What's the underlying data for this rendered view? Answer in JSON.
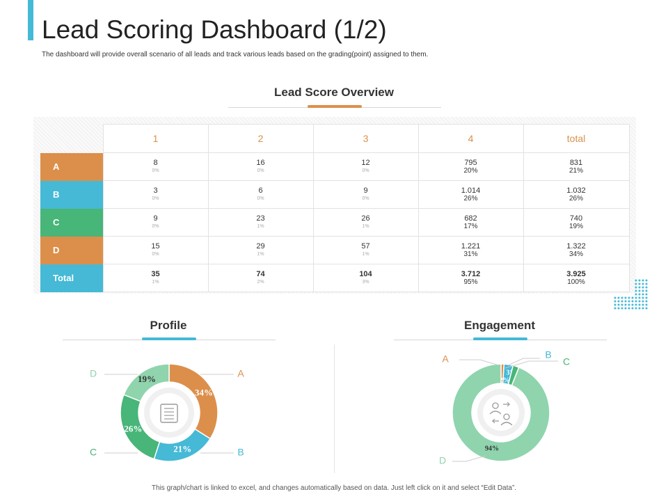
{
  "header": {
    "title": "Lead Scoring Dashboard (1/2)",
    "subtitle": "The dashboard will provide overall scenario of all leads and track various leads based on the grading(point) assigned to them."
  },
  "overview": {
    "title": "Lead Score Overview"
  },
  "colors": {
    "accent": "#45b9d6",
    "orange": "#dc8f4b",
    "blue": "#45b9d6",
    "green": "#48b579",
    "mint": "#8fd4ad",
    "header_text": "#d9904a"
  },
  "chart_data": [
    {
      "type": "table",
      "title": "Lead Score Overview",
      "columns": [
        "1",
        "2",
        "3",
        "4",
        "total"
      ],
      "rows": [
        {
          "label": "A",
          "cells": [
            {
              "v": "8",
              "p": "0%"
            },
            {
              "v": "16",
              "p": "0%"
            },
            {
              "v": "12",
              "p": "0%"
            },
            {
              "v": "795",
              "p": "20%"
            },
            {
              "v": "831",
              "p": "21%"
            }
          ]
        },
        {
          "label": "B",
          "cells": [
            {
              "v": "3",
              "p": "0%"
            },
            {
              "v": "6",
              "p": "0%"
            },
            {
              "v": "9",
              "p": "0%"
            },
            {
              "v": "1.014",
              "p": "26%"
            },
            {
              "v": "1.032",
              "p": "26%"
            }
          ]
        },
        {
          "label": "C",
          "cells": [
            {
              "v": "9",
              "p": "0%"
            },
            {
              "v": "23",
              "p": "1%"
            },
            {
              "v": "26",
              "p": "1%"
            },
            {
              "v": "682",
              "p": "17%"
            },
            {
              "v": "740",
              "p": "19%"
            }
          ]
        },
        {
          "label": "D",
          "cells": [
            {
              "v": "15",
              "p": "0%"
            },
            {
              "v": "29",
              "p": "1%"
            },
            {
              "v": "57",
              "p": "1%"
            },
            {
              "v": "1.221",
              "p": "31%"
            },
            {
              "v": "1.322",
              "p": "34%"
            }
          ]
        },
        {
          "label": "Total",
          "cells": [
            {
              "v": "35",
              "p": "1%"
            },
            {
              "v": "74",
              "p": "2%"
            },
            {
              "v": "104",
              "p": "3%"
            },
            {
              "v": "3.712",
              "p": "95%"
            },
            {
              "v": "3.925",
              "p": "100%"
            }
          ]
        }
      ]
    },
    {
      "type": "pie",
      "title": "Profile",
      "slices": [
        {
          "label": "A",
          "value": 34,
          "text": "34%",
          "color": "#dc8f4b"
        },
        {
          "label": "B",
          "value": 21,
          "text": "21%",
          "color": "#45b9d6"
        },
        {
          "label": "C",
          "value": 26,
          "text": "26%",
          "color": "#48b579"
        },
        {
          "label": "D",
          "value": 19,
          "text": "19%",
          "color": "#8fd4ad"
        }
      ]
    },
    {
      "type": "pie",
      "title": "Engagement",
      "slices": [
        {
          "label": "A",
          "value": 1,
          "text": "1%",
          "color": "#dc8f4b"
        },
        {
          "label": "B",
          "value": 3,
          "text": "3%",
          "color": "#45b9d6"
        },
        {
          "label": "C",
          "value": 2,
          "text": "2%",
          "color": "#48b579"
        },
        {
          "label": "D",
          "value": 94,
          "text": "94%",
          "color": "#8fd4ad"
        }
      ]
    }
  ],
  "footer": {
    "note": "This graph/chart is linked to excel, and changes automatically based on data. Just left click on it and select “Edit Data”."
  }
}
